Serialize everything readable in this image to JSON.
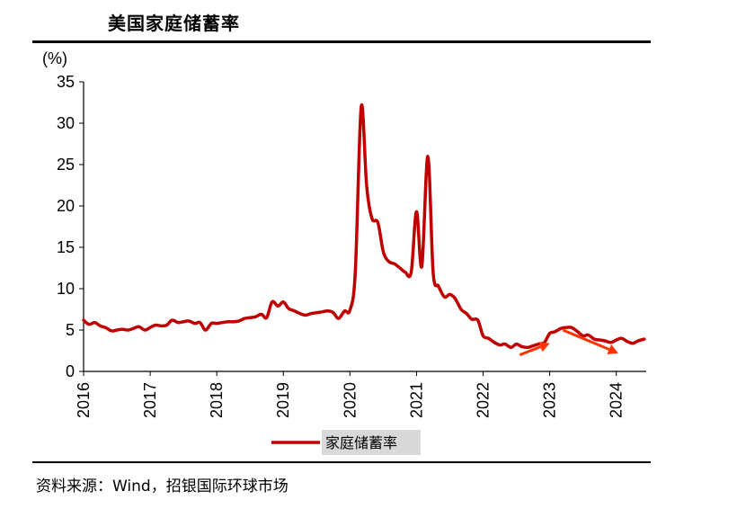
{
  "header": {
    "title": "美国家庭储蓄率"
  },
  "footer": {
    "source": "资料来源：Wind，招银国际环球市场"
  },
  "colors": {
    "series": "#c00000",
    "arrow": "#ff3300",
    "legend_bg": "#d9d9d9"
  },
  "chart_data": {
    "type": "line",
    "title": "美国家庭储蓄率",
    "ylabel": "(%)",
    "xlabel": "",
    "ylim": [
      0,
      35
    ],
    "yticks": [
      0,
      5,
      10,
      15,
      20,
      25,
      30,
      35
    ],
    "xlim": [
      2016.0,
      2024.45
    ],
    "xticks": [
      "2016",
      "2017",
      "2018",
      "2019",
      "2020",
      "2021",
      "2022",
      "2023",
      "2024"
    ],
    "grid": false,
    "legend": "bottom",
    "series": [
      {
        "name": "家庭储蓄率",
        "x": [
          2016.0,
          2016.08,
          2016.17,
          2016.25,
          2016.33,
          2016.42,
          2016.5,
          2016.58,
          2016.67,
          2016.75,
          2016.83,
          2016.92,
          2017.0,
          2017.08,
          2017.17,
          2017.25,
          2017.33,
          2017.42,
          2017.5,
          2017.58,
          2017.67,
          2017.75,
          2017.83,
          2017.92,
          2018.0,
          2018.08,
          2018.17,
          2018.25,
          2018.33,
          2018.42,
          2018.5,
          2018.58,
          2018.67,
          2018.75,
          2018.83,
          2018.92,
          2019.0,
          2019.08,
          2019.17,
          2019.25,
          2019.33,
          2019.42,
          2019.5,
          2019.58,
          2019.67,
          2019.75,
          2019.83,
          2019.92,
          2020.0,
          2020.08,
          2020.17,
          2020.25,
          2020.33,
          2020.42,
          2020.5,
          2020.58,
          2020.67,
          2020.75,
          2020.83,
          2020.92,
          2021.0,
          2021.08,
          2021.17,
          2021.25,
          2021.33,
          2021.42,
          2021.5,
          2021.58,
          2021.67,
          2021.75,
          2021.83,
          2021.92,
          2022.0,
          2022.08,
          2022.17,
          2022.25,
          2022.33,
          2022.42,
          2022.5,
          2022.58,
          2022.67,
          2022.75,
          2022.83,
          2022.92,
          2023.0,
          2023.08,
          2023.17,
          2023.25,
          2023.33,
          2023.42,
          2023.5,
          2023.58,
          2023.67,
          2023.75,
          2023.83,
          2023.92,
          2024.0,
          2024.08,
          2024.17,
          2024.25,
          2024.33,
          2024.42
        ],
        "y": [
          6.2,
          5.7,
          5.9,
          5.5,
          5.3,
          4.9,
          5.0,
          5.1,
          5.0,
          5.2,
          5.4,
          5.0,
          5.3,
          5.6,
          5.5,
          5.6,
          6.2,
          5.9,
          6.0,
          6.1,
          5.8,
          5.9,
          5.0,
          5.8,
          5.8,
          5.9,
          6.0,
          6.0,
          6.1,
          6.4,
          6.5,
          6.6,
          6.9,
          6.5,
          8.4,
          7.9,
          8.4,
          7.6,
          7.3,
          7.0,
          6.8,
          7.0,
          7.1,
          7.2,
          7.3,
          7.1,
          6.4,
          7.3,
          7.4,
          12.0,
          32.0,
          22.5,
          18.5,
          18.0,
          14.5,
          13.3,
          13.0,
          12.5,
          12.0,
          12.0,
          19.3,
          12.7,
          26.0,
          12.0,
          10.3,
          9.0,
          9.3,
          8.8,
          7.5,
          7.0,
          6.3,
          6.2,
          4.3,
          4.0,
          3.5,
          3.2,
          3.3,
          2.9,
          3.3,
          3.0,
          2.9,
          3.1,
          3.3,
          3.5,
          4.6,
          4.8,
          5.2,
          5.3,
          5.3,
          4.8,
          4.3,
          4.4,
          3.9,
          3.8,
          3.7,
          3.5,
          3.8,
          4.0,
          3.6,
          3.4,
          3.7,
          3.9
        ]
      }
    ],
    "annotations": [
      {
        "type": "arrow",
        "from": [
          2022.55,
          2.0
        ],
        "to": [
          2023.0,
          3.4
        ]
      },
      {
        "type": "arrow",
        "from": [
          2023.2,
          5.0
        ],
        "to": [
          2024.03,
          2.2
        ]
      }
    ]
  }
}
